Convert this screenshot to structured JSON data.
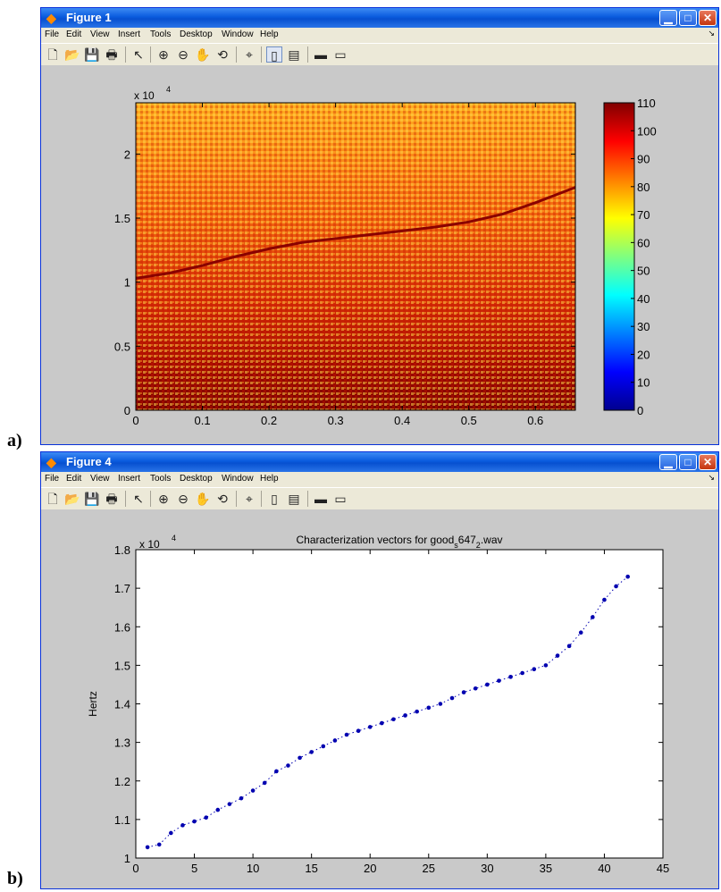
{
  "labels": {
    "a": "a)",
    "b": "b)"
  },
  "window1": {
    "title": "Figure 1",
    "menu": [
      "File",
      "Edit",
      "View",
      "Insert",
      "Tools",
      "Desktop",
      "Window",
      "Help"
    ],
    "controls": {
      "minimize": "▁",
      "maximize": "□",
      "close": "✕"
    }
  },
  "window2": {
    "title": "Figure 4",
    "menu": [
      "File",
      "Edit",
      "View",
      "Insert",
      "Tools",
      "Desktop",
      "Window",
      "Help"
    ],
    "controls": {
      "minimize": "▁",
      "maximize": "□",
      "close": "✕"
    }
  },
  "toolbar_icons": [
    "new-figure",
    "open-file",
    "save",
    "print",
    "pointer",
    "zoom-in",
    "zoom-out",
    "pan",
    "rotate-3d",
    "data-cursor",
    "colorbar",
    "legend",
    "hide-plot-tools",
    "show-plot-tools"
  ],
  "chart_data": [
    {
      "type": "heatmap",
      "title": "",
      "xlabel": "",
      "ylabel": "",
      "xlim": [
        0,
        0.66
      ],
      "ylim": [
        0,
        24000
      ],
      "xticks": [
        "0",
        "0.1",
        "0.2",
        "0.3",
        "0.4",
        "0.5",
        "0.6"
      ],
      "yticks": [
        "0",
        "0.5",
        "1",
        "1.5",
        "2"
      ],
      "yexponent": "x 10",
      "yexponent_power": "4",
      "colorbar": {
        "min": 0,
        "max": 110,
        "ticks": [
          "0",
          "10",
          "20",
          "30",
          "40",
          "50",
          "60",
          "70",
          "80",
          "90",
          "100",
          "110"
        ]
      },
      "ridge_line": {
        "x": [
          0,
          0.05,
          0.1,
          0.15,
          0.2,
          0.25,
          0.3,
          0.35,
          0.4,
          0.45,
          0.5,
          0.55,
          0.6,
          0.66
        ],
        "y": [
          10300,
          10700,
          11300,
          12000,
          12600,
          13100,
          13400,
          13700,
          14000,
          14300,
          14700,
          15300,
          16200,
          17400
        ]
      }
    },
    {
      "type": "scatter",
      "title": "Characterization vectors for good",
      "title_sub": "s",
      "title_mid": "647",
      "title_sub2": "2",
      "title_end": ".wav",
      "xlabel": "",
      "ylabel": "Hertz",
      "xlim": [
        0,
        45
      ],
      "ylim": [
        10000,
        18000
      ],
      "xticks": [
        "0",
        "5",
        "10",
        "15",
        "20",
        "25",
        "30",
        "35",
        "40",
        "45"
      ],
      "yticks": [
        "1",
        "1.1",
        "1.2",
        "1.3",
        "1.4",
        "1.5",
        "1.6",
        "1.7",
        "1.8"
      ],
      "yexponent": "x 10",
      "yexponent_power": "4",
      "color": "#0000b0",
      "x": [
        1,
        2,
        3,
        4,
        5,
        6,
        7,
        8,
        9,
        10,
        11,
        12,
        13,
        14,
        15,
        16,
        17,
        18,
        19,
        20,
        21,
        22,
        23,
        24,
        25,
        26,
        27,
        28,
        29,
        30,
        31,
        32,
        33,
        34,
        35,
        36,
        37,
        38,
        39,
        40,
        41,
        42
      ],
      "y": [
        10280,
        10350,
        10650,
        10850,
        10950,
        11050,
        11250,
        11400,
        11550,
        11750,
        11950,
        12250,
        12400,
        12600,
        12750,
        12900,
        13050,
        13200,
        13300,
        13400,
        13500,
        13600,
        13700,
        13800,
        13900,
        14000,
        14150,
        14300,
        14400,
        14500,
        14600,
        14700,
        14800,
        14900,
        15000,
        15250,
        15500,
        15850,
        16250,
        16700,
        17050,
        17300
      ]
    }
  ]
}
